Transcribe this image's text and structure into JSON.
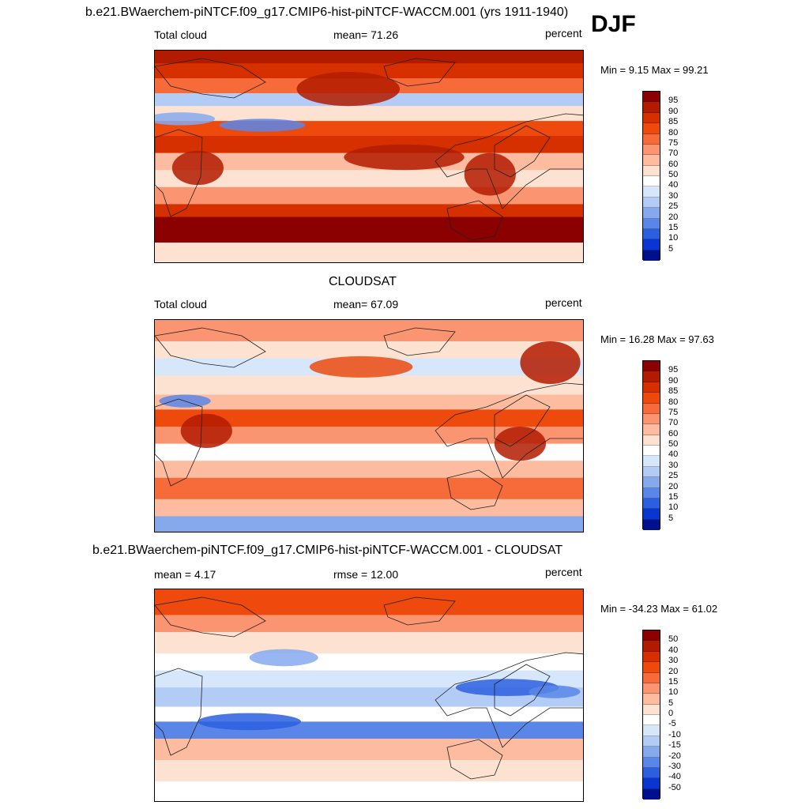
{
  "season": "DJF",
  "chart_data": [
    {
      "type": "heatmap",
      "title": "b.e21.BWaerchem-piNTCF.f09_g17.CMIP6-hist-piNTCF-WACCM.001 (yrs 1911-1940)",
      "left_label": "Total cloud",
      "center_label": "mean=  71.26",
      "units": "percent",
      "minmax": "Min =   9.15 Max =  99.21",
      "mean": 71.26,
      "min": 9.15,
      "max": 99.21,
      "levels": [
        "95",
        "90",
        "85",
        "80",
        "75",
        "70",
        "60",
        "50",
        "40",
        "30",
        "25",
        "20",
        "15",
        "10",
        "5"
      ],
      "colors": [
        "#8b0000",
        "#b31b00",
        "#d63000",
        "#ee4a0e",
        "#f76b3a",
        "#fb9470",
        "#fdbb9f",
        "#fde2d2",
        "#ffffff",
        "#d6e6fb",
        "#b2ccf5",
        "#86a9ee",
        "#5a86e8",
        "#2c5fe0",
        "#0a35d0",
        "#00108c"
      ]
    },
    {
      "type": "heatmap",
      "title": "CLOUDSAT",
      "left_label": "Total cloud",
      "center_label": "mean=  67.09",
      "units": "percent",
      "minmax": "Min =  16.28 Max =  97.63",
      "mean": 67.09,
      "min": 16.28,
      "max": 97.63,
      "levels": [
        "95",
        "90",
        "85",
        "80",
        "75",
        "70",
        "60",
        "50",
        "40",
        "30",
        "25",
        "20",
        "15",
        "10",
        "5"
      ],
      "colors": [
        "#8b0000",
        "#b31b00",
        "#d63000",
        "#ee4a0e",
        "#f76b3a",
        "#fb9470",
        "#fdbb9f",
        "#fde2d2",
        "#ffffff",
        "#d6e6fb",
        "#b2ccf5",
        "#86a9ee",
        "#5a86e8",
        "#2c5fe0",
        "#0a35d0",
        "#00108c"
      ]
    },
    {
      "type": "heatmap",
      "title": "b.e21.BWaerchem-piNTCF.f09_g17.CMIP6-hist-piNTCF-WACCM.001 - CLOUDSAT",
      "left_label": "mean =   4.17",
      "center_label": "rmse =  12.00",
      "units": "percent",
      "minmax": "Min = -34.23 Max =  61.02",
      "mean": 4.17,
      "rmse": 12.0,
      "min": -34.23,
      "max": 61.02,
      "levels": [
        "50",
        "40",
        "30",
        "20",
        "15",
        "10",
        "5",
        "0",
        "-5",
        "-10",
        "-15",
        "-20",
        "-30",
        "-40",
        "-50"
      ],
      "colors": [
        "#8b0000",
        "#b31b00",
        "#d63000",
        "#ee4a0e",
        "#f76b3a",
        "#fb9470",
        "#fdbb9f",
        "#fde2d2",
        "#ffffff",
        "#d6e6fb",
        "#b2ccf5",
        "#86a9ee",
        "#5a86e8",
        "#2c5fe0",
        "#0a35d0",
        "#00108c"
      ]
    }
  ]
}
